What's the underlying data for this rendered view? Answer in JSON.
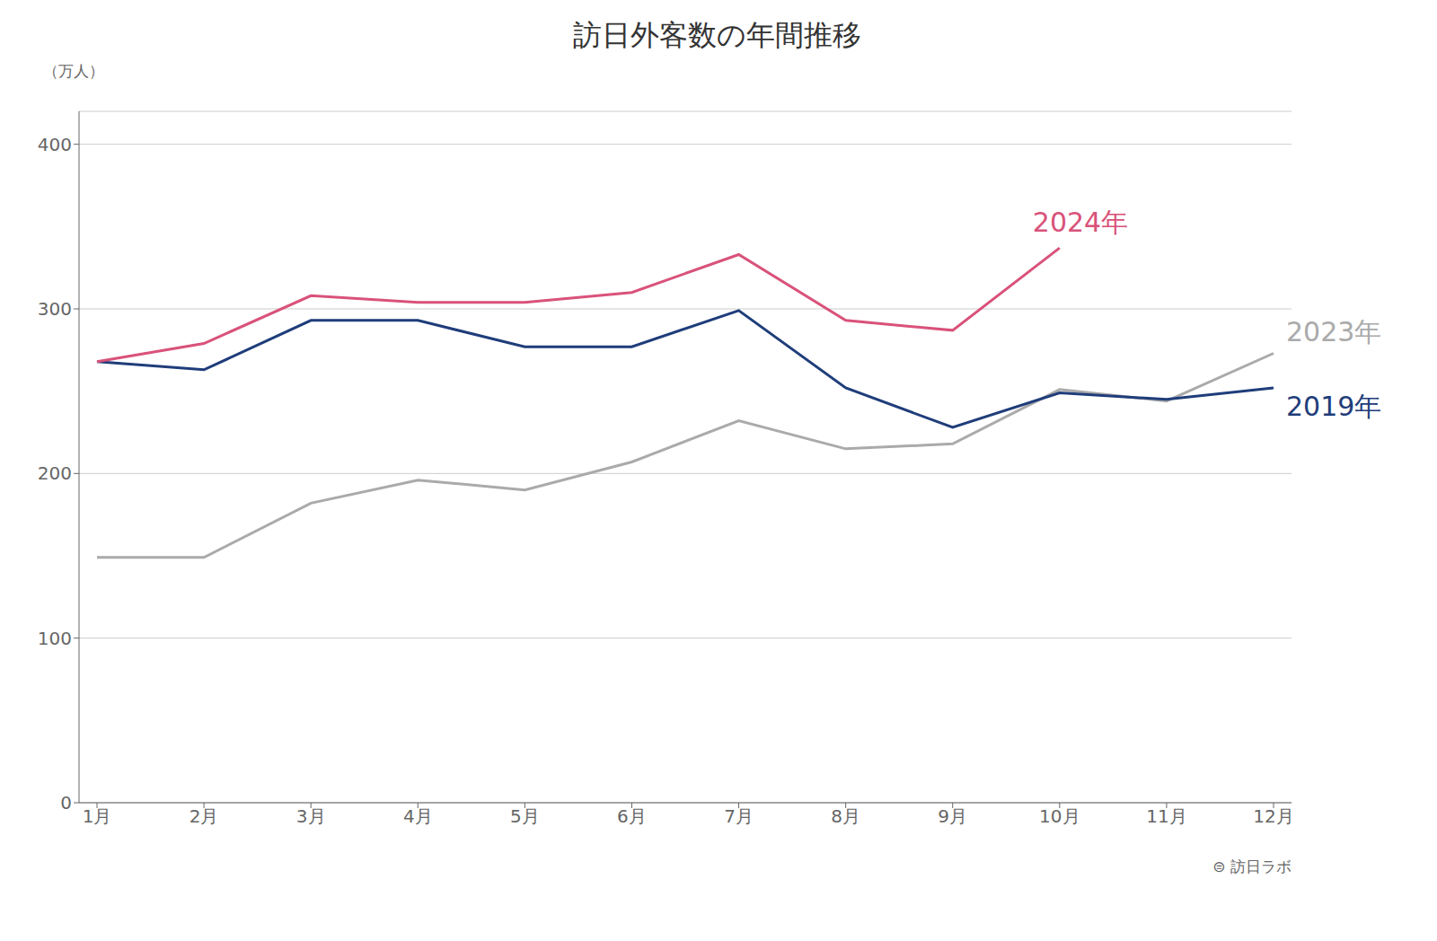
{
  "chart_data": {
    "type": "line",
    "title": "訪日外客数の年間推移",
    "ylabel": "（万人）",
    "categories": [
      "1月",
      "2月",
      "3月",
      "4月",
      "5月",
      "6月",
      "7月",
      "8月",
      "9月",
      "10月",
      "11月",
      "12月"
    ],
    "series": [
      {
        "name": "2023年",
        "color": "#aaaaaa",
        "values": [
          149,
          149,
          182,
          196,
          190,
          207,
          232,
          215,
          218,
          251,
          244,
          273
        ]
      },
      {
        "name": "2019年",
        "color": "#1f3d7a",
        "values": [
          268,
          263,
          293,
          293,
          277,
          277,
          299,
          252,
          228,
          249,
          245,
          252
        ]
      },
      {
        "name": "2024年",
        "color": "#d9527a",
        "values": [
          268,
          279,
          308,
          304,
          304,
          310,
          333,
          293,
          287,
          337,
          null,
          null
        ]
      }
    ],
    "ylim": [
      0,
      420
    ],
    "yticks": [
      0,
      100,
      200,
      300,
      400
    ],
    "grid": true,
    "annotations": [
      "⊜ 訪日ラボ"
    ]
  }
}
